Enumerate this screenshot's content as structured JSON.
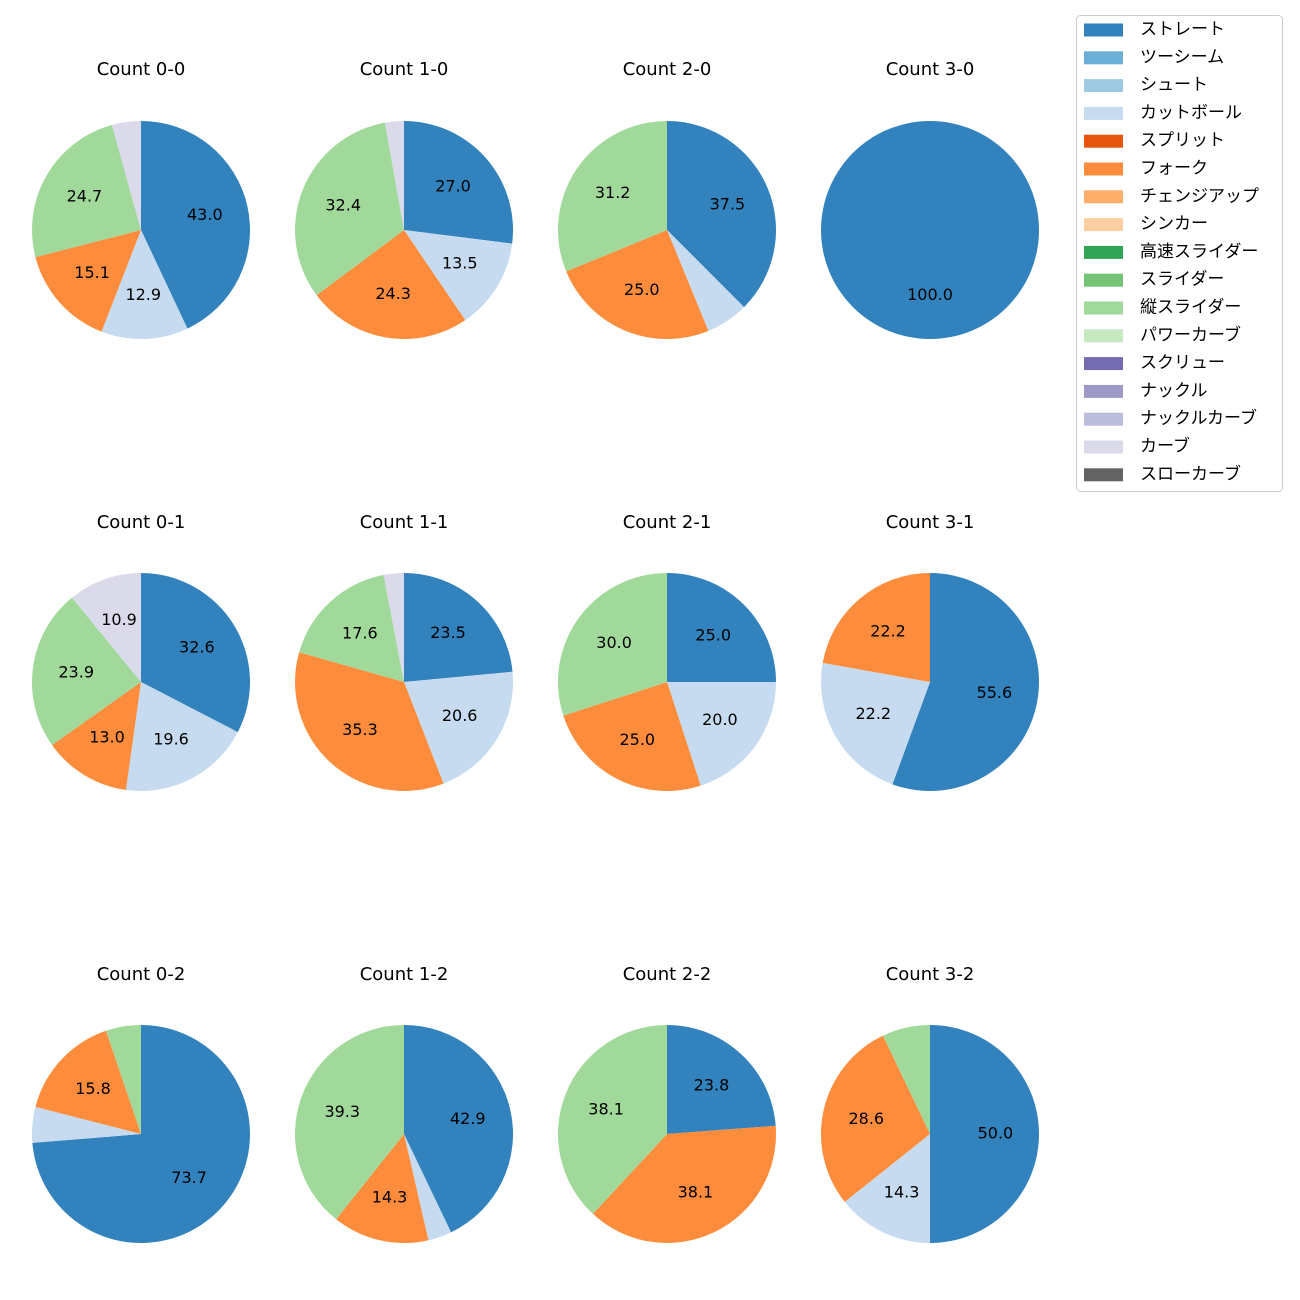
{
  "legend": {
    "items": [
      {
        "label": "ストレート",
        "color": "#3182bd"
      },
      {
        "label": "ツーシーム",
        "color": "#6baed6"
      },
      {
        "label": "シュート",
        "color": "#9ecae1"
      },
      {
        "label": "カットボール",
        "color": "#c6dbef"
      },
      {
        "label": "スプリット",
        "color": "#e6550d"
      },
      {
        "label": "フォーク",
        "color": "#fd8d3c"
      },
      {
        "label": "チェンジアップ",
        "color": "#fdae6b"
      },
      {
        "label": "シンカー",
        "color": "#fdd0a2"
      },
      {
        "label": "高速スライダー",
        "color": "#31a354"
      },
      {
        "label": "スライダー",
        "color": "#74c476"
      },
      {
        "label": "縦スライダー",
        "color": "#a1d99b"
      },
      {
        "label": "パワーカーブ",
        "color": "#c7e9c0"
      },
      {
        "label": "スクリュー",
        "color": "#756bb1"
      },
      {
        "label": "ナックル",
        "color": "#9e9ac8"
      },
      {
        "label": "ナックルカーブ",
        "color": "#bcbddc"
      },
      {
        "label": "カーブ",
        "color": "#dadaeb"
      },
      {
        "label": "スローカーブ",
        "color": "#636363"
      }
    ]
  },
  "chart_data": [
    {
      "type": "pie",
      "title": "Count 0-0",
      "slices": [
        {
          "category": "ストレート",
          "value": 43.0,
          "label": "43.0"
        },
        {
          "category": "カットボール",
          "value": 12.9,
          "label": "12.9"
        },
        {
          "category": "フォーク",
          "value": 15.1,
          "label": "15.1"
        },
        {
          "category": "縦スライダー",
          "value": 24.7,
          "label": "24.7"
        },
        {
          "category": "カーブ",
          "value": 4.3,
          "label": ""
        }
      ]
    },
    {
      "type": "pie",
      "title": "Count 1-0",
      "slices": [
        {
          "category": "ストレート",
          "value": 27.0,
          "label": "27.0"
        },
        {
          "category": "カットボール",
          "value": 13.5,
          "label": "13.5"
        },
        {
          "category": "フォーク",
          "value": 24.3,
          "label": "24.3"
        },
        {
          "category": "縦スライダー",
          "value": 32.4,
          "label": "32.4"
        },
        {
          "category": "カーブ",
          "value": 2.8,
          "label": ""
        }
      ]
    },
    {
      "type": "pie",
      "title": "Count 2-0",
      "slices": [
        {
          "category": "ストレート",
          "value": 37.5,
          "label": "37.5"
        },
        {
          "category": "カットボール",
          "value": 6.3,
          "label": ""
        },
        {
          "category": "フォーク",
          "value": 25.0,
          "label": "25.0"
        },
        {
          "category": "縦スライダー",
          "value": 31.2,
          "label": "31.2"
        }
      ]
    },
    {
      "type": "pie",
      "title": "Count 3-0",
      "slices": [
        {
          "category": "ストレート",
          "value": 100.0,
          "label": "100.0"
        }
      ]
    },
    {
      "type": "pie",
      "title": "Count 0-1",
      "slices": [
        {
          "category": "ストレート",
          "value": 32.6,
          "label": "32.6"
        },
        {
          "category": "カットボール",
          "value": 19.6,
          "label": "19.6"
        },
        {
          "category": "フォーク",
          "value": 13.0,
          "label": "13.0"
        },
        {
          "category": "縦スライダー",
          "value": 23.9,
          "label": "23.9"
        },
        {
          "category": "カーブ",
          "value": 10.9,
          "label": "10.9"
        }
      ]
    },
    {
      "type": "pie",
      "title": "Count 1-1",
      "slices": [
        {
          "category": "ストレート",
          "value": 23.5,
          "label": "23.5"
        },
        {
          "category": "カットボール",
          "value": 20.6,
          "label": "20.6"
        },
        {
          "category": "フォーク",
          "value": 35.3,
          "label": "35.3"
        },
        {
          "category": "縦スライダー",
          "value": 17.6,
          "label": "17.6"
        },
        {
          "category": "カーブ",
          "value": 3.0,
          "label": ""
        }
      ]
    },
    {
      "type": "pie",
      "title": "Count 2-1",
      "slices": [
        {
          "category": "ストレート",
          "value": 25.0,
          "label": "25.0"
        },
        {
          "category": "カットボール",
          "value": 20.0,
          "label": "20.0"
        },
        {
          "category": "フォーク",
          "value": 25.0,
          "label": "25.0"
        },
        {
          "category": "縦スライダー",
          "value": 30.0,
          "label": "30.0"
        }
      ]
    },
    {
      "type": "pie",
      "title": "Count 3-1",
      "slices": [
        {
          "category": "ストレート",
          "value": 55.6,
          "label": "55.6"
        },
        {
          "category": "カットボール",
          "value": 22.2,
          "label": "22.2"
        },
        {
          "category": "フォーク",
          "value": 22.2,
          "label": "22.2"
        }
      ]
    },
    {
      "type": "pie",
      "title": "Count 0-2",
      "slices": [
        {
          "category": "ストレート",
          "value": 73.7,
          "label": "73.7"
        },
        {
          "category": "カットボール",
          "value": 5.3,
          "label": ""
        },
        {
          "category": "フォーク",
          "value": 15.8,
          "label": "15.8"
        },
        {
          "category": "縦スライダー",
          "value": 5.2,
          "label": ""
        }
      ]
    },
    {
      "type": "pie",
      "title": "Count 1-2",
      "slices": [
        {
          "category": "ストレート",
          "value": 42.9,
          "label": "42.9"
        },
        {
          "category": "カットボール",
          "value": 3.5,
          "label": ""
        },
        {
          "category": "フォーク",
          "value": 14.3,
          "label": "14.3"
        },
        {
          "category": "縦スライダー",
          "value": 39.3,
          "label": "39.3"
        }
      ]
    },
    {
      "type": "pie",
      "title": "Count 2-2",
      "slices": [
        {
          "category": "ストレート",
          "value": 23.8,
          "label": "23.8"
        },
        {
          "category": "フォーク",
          "value": 38.1,
          "label": "38.1"
        },
        {
          "category": "縦スライダー",
          "value": 38.1,
          "label": "38.1"
        }
      ]
    },
    {
      "type": "pie",
      "title": "Count 3-2",
      "slices": [
        {
          "category": "ストレート",
          "value": 50.0,
          "label": "50.0"
        },
        {
          "category": "カットボール",
          "value": 14.3,
          "label": "14.3"
        },
        {
          "category": "フォーク",
          "value": 28.6,
          "label": "28.6"
        },
        {
          "category": "縦スライダー",
          "value": 7.1,
          "label": ""
        }
      ]
    }
  ]
}
